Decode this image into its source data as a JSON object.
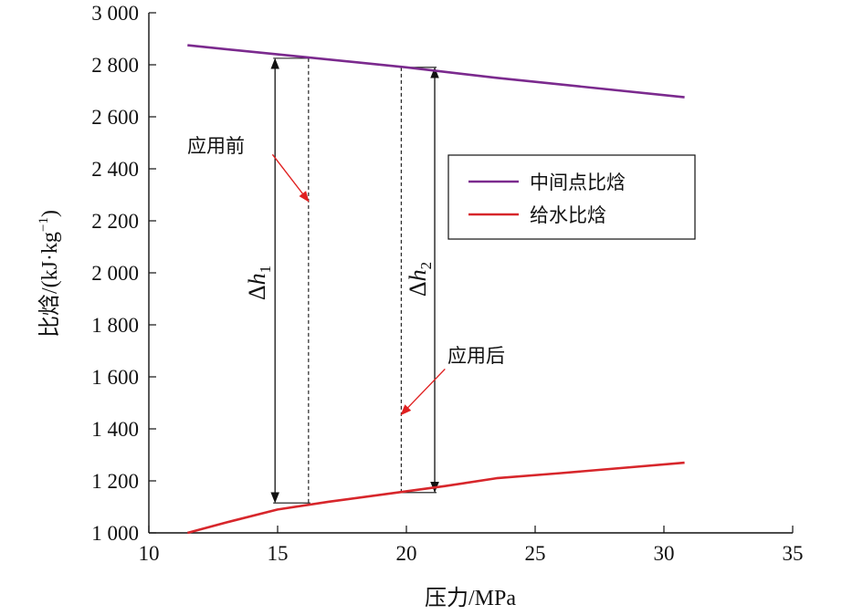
{
  "chart_data": {
    "type": "line",
    "xlabel": "压力/MPa",
    "ylabel": "比焓/(kJ·kg",
    "ylabel_sup": "−1",
    "ylabel_close": ")",
    "xlim": [
      10,
      35
    ],
    "ylim": [
      1000,
      3000
    ],
    "xticks": [
      10,
      15,
      20,
      25,
      30,
      35
    ],
    "yticks": [
      1000,
      1200,
      1400,
      1600,
      1800,
      2000,
      2200,
      2400,
      2600,
      2800,
      3000
    ],
    "ytick_labels": [
      "1 000",
      "1 200",
      "1 400",
      "1 600",
      "1 800",
      "2 000",
      "2 200",
      "2 400",
      "2 600",
      "2 800",
      "3 000"
    ],
    "grid": false,
    "legend_position": "right-center",
    "series": [
      {
        "name": "中间点比焓",
        "color": "#7b2a8e",
        "x": [
          11.5,
          15.0,
          20.0,
          23.5,
          30.8
        ],
        "y": [
          2875,
          2840,
          2790,
          2750,
          2675
        ]
      },
      {
        "name": "给水比焓",
        "color": "#d7262b",
        "x": [
          11.5,
          13.0,
          15.0,
          17.0,
          20.0,
          21.5,
          23.5,
          26.0,
          30.8
        ],
        "y": [
          1000,
          1040,
          1090,
          1120,
          1160,
          1180,
          1210,
          1230,
          1270
        ]
      }
    ],
    "annotations": {
      "before_label": "应用前",
      "after_label": "应用后",
      "delta1_base": "Δ",
      "delta1_var": "h",
      "delta1_sub": "1",
      "delta2_base": "Δ",
      "delta2_var": "h",
      "delta2_sub": "2",
      "before": {
        "x_line": 16.2,
        "x_arrow": 14.9,
        "y_top": 2825,
        "y_bottom": 1115
      },
      "after": {
        "x_line": 19.8,
        "x_arrow": 21.1,
        "y_top": 2790,
        "y_bottom": 1155
      },
      "before_pointer": {
        "from_x": 14.8,
        "from_y": 2455,
        "to_x": 16.2,
        "to_y": 2275
      },
      "after_pointer": {
        "from_x": 21.5,
        "from_y": 1630,
        "to_x": 19.8,
        "to_y": 1455
      }
    }
  }
}
